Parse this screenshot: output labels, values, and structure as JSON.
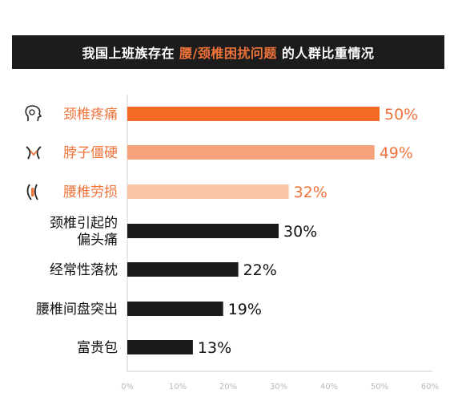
{
  "title": {
    "prefix": "我国上班族存在",
    "highlight": "腰/颈椎困扰问题",
    "suffix": "的人群比重情况"
  },
  "colors": {
    "title_bg": "#1c1c1c",
    "accent": "#f0733a",
    "orange_dark": "#f36a25",
    "orange_mid": "#f5a37c",
    "orange_light": "#f9c4a6",
    "black_bar": "#1a1a1a"
  },
  "chart_data": {
    "type": "bar",
    "orientation": "horizontal",
    "categories": [
      {
        "label": [
          "颈椎疼痛"
        ],
        "icon": "head-pain-icon",
        "color": "#f36a25",
        "label_color": "#f0733a",
        "value_color": "#f0733a"
      },
      {
        "label": [
          "脖子僵硬"
        ],
        "icon": "neck-icon",
        "color": "#f5a37c",
        "label_color": "#f0733a",
        "value_color": "#f0733a"
      },
      {
        "label": [
          "腰椎劳损"
        ],
        "icon": "back-icon",
        "color": "#f9c4a6",
        "label_color": "#f0733a",
        "value_color": "#f0733a"
      },
      {
        "label": [
          "颈椎引起的",
          "偏头痛"
        ],
        "icon": null,
        "color": "#1a1a1a",
        "label_color": "#111111",
        "value_color": "#111111"
      },
      {
        "label": [
          "经常性落枕"
        ],
        "icon": null,
        "color": "#1a1a1a",
        "label_color": "#111111",
        "value_color": "#111111"
      },
      {
        "label": [
          "腰椎间盘突出"
        ],
        "icon": null,
        "color": "#1a1a1a",
        "label_color": "#111111",
        "value_color": "#111111"
      },
      {
        "label": [
          "富贵包"
        ],
        "icon": null,
        "color": "#1a1a1a",
        "label_color": "#111111",
        "value_color": "#111111"
      }
    ],
    "values": [
      50,
      49,
      32,
      30,
      22,
      19,
      13
    ],
    "value_labels": [
      "50%",
      "49%",
      "32%",
      "30%",
      "22%",
      "19%",
      "13%"
    ],
    "xticks": [
      0,
      10,
      20,
      30,
      40,
      50,
      60
    ],
    "xtick_labels": [
      "0%",
      "10%",
      "20%",
      "30%",
      "40%",
      "50%",
      "60%"
    ],
    "xlim": [
      0,
      60
    ],
    "grid": false
  }
}
